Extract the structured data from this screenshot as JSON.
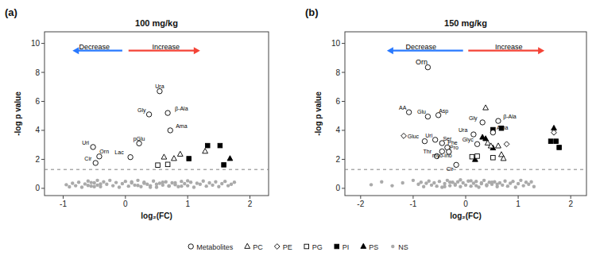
{
  "chart_data": [
    {
      "type": "scatter",
      "title": "100 mg/kg",
      "panel_label": "(a)",
      "x_label": "log₂(FC)",
      "y_label": "-log p value",
      "xlim": [
        -1.3,
        2.3
      ],
      "ylim": [
        -0.5,
        10.8
      ],
      "xticks": [
        -1,
        0,
        1,
        2
      ],
      "yticks": [
        0,
        2,
        4,
        6,
        8,
        10
      ],
      "grid": false,
      "legend": "bottom",
      "series": [
        {
          "name": "Metabolites",
          "marker": "open-circle",
          "color": "black",
          "x": [
            0.55,
            0.38,
            0.68,
            0.72,
            0.22,
            0.08,
            -0.52,
            -0.42,
            -0.48
          ],
          "values": [
            6.7,
            5.1,
            5.2,
            4.0,
            3.1,
            2.15,
            2.85,
            2.2,
            1.75
          ]
        },
        {
          "name": "PC",
          "marker": "open-triangle",
          "color": "black",
          "x": [
            0.62,
            0.78,
            0.88,
            1.28
          ],
          "values": [
            2.15,
            2.05,
            2.35,
            2.55
          ]
        },
        {
          "name": "PE",
          "marker": "open-diamond",
          "color": "black",
          "x": [],
          "values": []
        },
        {
          "name": "PG",
          "marker": "open-square",
          "color": "black",
          "x": [
            0.52,
            0.68
          ],
          "values": [
            1.6,
            1.65
          ]
        },
        {
          "name": "PI",
          "marker": "square",
          "color": "black",
          "x": [
            1.02,
            1.32,
            1.52,
            1.58
          ],
          "values": [
            2.05,
            2.95,
            2.95,
            1.62
          ]
        },
        {
          "name": "PS",
          "marker": "triangle",
          "color": "black",
          "x": [
            1.68
          ],
          "values": [
            2.05
          ]
        },
        {
          "name": "NS",
          "marker": "circle",
          "color": "#aaaaaa",
          "x": [
            -0.95,
            -0.9,
            -0.85,
            -0.8,
            -0.75,
            -0.7,
            -0.65,
            -0.6,
            -0.55,
            -0.5,
            -0.45,
            -0.4,
            -0.35,
            -0.3,
            -0.25,
            -0.2,
            -0.15,
            -0.1,
            -0.05,
            0.0,
            0.05,
            0.1,
            0.15,
            0.2,
            0.25,
            0.3,
            0.35,
            0.4,
            0.45,
            0.5,
            0.55,
            0.6,
            0.65,
            0.7,
            0.75,
            0.8,
            0.85,
            0.9,
            0.95,
            1.0,
            1.05,
            1.1,
            1.15,
            1.2,
            1.25,
            1.3,
            1.35,
            1.4,
            1.45,
            1.5,
            1.55,
            1.6,
            1.65,
            1.7,
            1.75,
            -0.6,
            -0.55,
            -0.5,
            -0.45,
            -0.4,
            0.1,
            0.2,
            0.3,
            0.4,
            0.5,
            0.6,
            0.7,
            0.8,
            0.9,
            1.0
          ],
          "values": [
            0.25,
            0.1,
            0.35,
            0.18,
            0.42,
            0.08,
            0.3,
            0.5,
            0.15,
            0.38,
            0.22,
            0.12,
            0.45,
            0.28,
            0.55,
            0.18,
            0.4,
            0.08,
            0.32,
            0.48,
            0.15,
            0.38,
            0.22,
            0.55,
            0.12,
            0.42,
            0.28,
            0.18,
            0.5,
            0.08,
            0.35,
            0.22,
            0.45,
            0.15,
            0.38,
            0.25,
            0.12,
            0.48,
            0.32,
            0.18,
            0.42,
            0.08,
            0.35,
            0.28,
            0.5,
            0.15,
            0.38,
            0.22,
            0.45,
            0.12,
            0.32,
            0.48,
            0.18,
            0.28,
            0.42,
            0.2,
            0.4,
            0.12,
            0.55,
            0.3,
            0.45,
            0.2,
            0.35,
            0.08,
            0.28,
            0.42,
            0.18,
            0.38,
            0.15,
            0.52
          ]
        }
      ],
      "hlines": [
        {
          "y": 1.3,
          "color": "gray",
          "line_style": "dashed"
        }
      ],
      "arrows": [
        {
          "x_start": -0.05,
          "x_end": -0.85,
          "y": 9.5,
          "color": "#2979FF"
        },
        {
          "x_start": 0.05,
          "x_end": 1.2,
          "y": 9.5,
          "color": "#F44336"
        }
      ],
      "annotations": [
        {
          "text": "Ura",
          "x": 0.55,
          "y": 6.9
        },
        {
          "text": "Gly",
          "x": 0.26,
          "y": 5.28
        },
        {
          "text": "β-Ala",
          "x": 0.9,
          "y": 5.38
        },
        {
          "text": "Ama",
          "x": 0.9,
          "y": 4.18
        },
        {
          "text": "pGlu",
          "x": 0.22,
          "y": 3.28
        },
        {
          "text": "Lac",
          "x": -0.1,
          "y": 2.33
        },
        {
          "text": "Uri",
          "x": -0.64,
          "y": 3.03
        },
        {
          "text": "Orn",
          "x": -0.34,
          "y": 2.38
        },
        {
          "text": "Cir",
          "x": -0.6,
          "y": 1.93
        },
        {
          "text": "Decrease",
          "x": -0.5,
          "y": 9.6
        },
        {
          "text": "Increase",
          "x": 0.65,
          "y": 9.6
        }
      ]
    },
    {
      "type": "scatter",
      "title": "150 mg/kg",
      "panel_label": "(b)",
      "x_label": "log₂(FC)",
      "y_label": "-log p value",
      "xlim": [
        -2.3,
        2.3
      ],
      "ylim": [
        -0.5,
        10.8
      ],
      "xticks": [
        -2,
        -1,
        0,
        1,
        2
      ],
      "yticks": [
        0,
        2,
        4,
        6,
        8,
        10
      ],
      "grid": false,
      "series": [
        {
          "name": "Metabolites",
          "marker": "open-circle",
          "color": "black",
          "x": [
            -0.72,
            -1.08,
            -0.72,
            -0.52,
            -0.78,
            -0.58,
            -0.45,
            -0.35,
            -0.45,
            -0.55,
            -0.32,
            -0.18,
            0.15,
            0.32,
            0.62,
            0.52,
            0.22
          ],
          "values": [
            8.35,
            5.25,
            4.95,
            5.05,
            3.25,
            3.35,
            3.12,
            2.82,
            2.55,
            2.22,
            2.52,
            1.62,
            3.72,
            4.55,
            4.65,
            3.85,
            3.05
          ]
        },
        {
          "name": "PC",
          "marker": "open-triangle",
          "color": "black",
          "x": [
            0.38,
            0.42,
            0.48,
            0.62,
            0.68,
            0.72
          ],
          "values": [
            5.55,
            3.12,
            2.92,
            2.92,
            2.32,
            2.05
          ]
        },
        {
          "name": "PE",
          "marker": "open-diamond",
          "color": "black",
          "x": [
            -1.18,
            0.78,
            1.68
          ],
          "values": [
            3.62,
            3.05,
            3.85
          ]
        },
        {
          "name": "PG",
          "marker": "open-square",
          "color": "black",
          "x": [
            0.12,
            0.22,
            0.52
          ],
          "values": [
            2.18,
            2.22,
            2.12
          ]
        },
        {
          "name": "PI",
          "marker": "square",
          "color": "black",
          "x": [
            0.52,
            0.68,
            1.62,
            1.72,
            1.78
          ],
          "values": [
            4.05,
            4.15,
            3.25,
            3.25,
            2.82
          ]
        },
        {
          "name": "PS",
          "marker": "triangle",
          "color": "black",
          "x": [
            0.18,
            0.32,
            0.38,
            0.52,
            1.68
          ],
          "values": [
            1.98,
            3.52,
            3.42,
            2.78,
            4.15
          ]
        },
        {
          "name": "NS",
          "marker": "circle",
          "color": "#aaaaaa",
          "x": [
            -1.8,
            -1.6,
            -1.4,
            -1.2,
            -1.0,
            -0.9,
            -0.85,
            -0.8,
            -0.75,
            -0.7,
            -0.65,
            -0.6,
            -0.55,
            -0.5,
            -0.45,
            -0.4,
            -0.35,
            -0.3,
            -0.25,
            -0.2,
            -0.15,
            -0.1,
            -0.05,
            0.0,
            0.05,
            0.1,
            0.15,
            0.2,
            0.25,
            0.3,
            0.35,
            0.4,
            0.45,
            0.5,
            0.55,
            0.6,
            0.65,
            0.7,
            0.75,
            0.8,
            0.85,
            0.9,
            0.95,
            1.0,
            1.05,
            1.1,
            1.15,
            1.2,
            1.25,
            1.3,
            -0.1,
            -0.2,
            -0.3,
            0.1,
            0.2,
            0.3,
            0.4,
            -0.4,
            0.5,
            0.6
          ],
          "values": [
            0.25,
            0.45,
            0.18,
            0.38,
            0.55,
            0.28,
            0.42,
            0.12,
            0.35,
            0.5,
            0.22,
            0.38,
            0.15,
            0.48,
            0.08,
            0.32,
            0.55,
            0.18,
            0.42,
            0.28,
            0.45,
            0.12,
            0.38,
            0.22,
            0.5,
            0.15,
            0.35,
            0.48,
            0.08,
            0.32,
            0.55,
            0.18,
            0.42,
            0.28,
            0.45,
            0.12,
            0.38,
            0.22,
            0.5,
            0.15,
            0.35,
            0.48,
            0.08,
            0.32,
            0.55,
            0.18,
            0.42,
            0.28,
            0.45,
            0.12,
            0.58,
            0.22,
            0.42,
            0.52,
            0.18,
            0.38,
            0.25,
            0.12,
            0.42,
            0.28
          ]
        }
      ],
      "hlines": [
        {
          "y": 1.3,
          "color": "gray",
          "line_style": "dashed"
        }
      ],
      "arrows": [
        {
          "x_start": -0.05,
          "x_end": -1.5,
          "y": 9.5,
          "color": "#2979FF"
        },
        {
          "x_start": 0.05,
          "x_end": 1.5,
          "y": 9.5,
          "color": "#F44336"
        }
      ],
      "annotations": [
        {
          "text": "Orn",
          "x": -0.84,
          "y": 8.53
        },
        {
          "text": "AA",
          "x": -1.2,
          "y": 5.43
        },
        {
          "text": "Glu",
          "x": -0.84,
          "y": 5.13
        },
        {
          "text": "Asp",
          "x": -0.42,
          "y": 5.23
        },
        {
          "text": "Gluc",
          "x": -1.0,
          "y": 3.43
        },
        {
          "text": "Uri",
          "x": -0.7,
          "y": 3.53
        },
        {
          "text": "Ser",
          "x": -0.35,
          "y": 3.3
        },
        {
          "text": "Phe",
          "x": -0.25,
          "y": 3.0
        },
        {
          "text": "myo-ino",
          "x": -0.45,
          "y": 2.15
        },
        {
          "text": "Thr",
          "x": -0.73,
          "y": 2.4
        },
        {
          "text": "Pro",
          "x": -0.22,
          "y": 2.7
        },
        {
          "text": "Cir",
          "x": -0.3,
          "y": 1.22
        },
        {
          "text": "Ura",
          "x": -0.05,
          "y": 3.9
        },
        {
          "text": "Gly",
          "x": 0.14,
          "y": 4.73
        },
        {
          "text": "β-Ala",
          "x": 0.84,
          "y": 4.83
        },
        {
          "text": "Ama",
          "x": 0.7,
          "y": 4.03
        },
        {
          "text": "Glyc",
          "x": 0.04,
          "y": 3.23
        },
        {
          "text": "Decrease",
          "x": -0.85,
          "y": 9.6
        },
        {
          "text": "Increase",
          "x": 0.82,
          "y": 9.6
        }
      ]
    }
  ]
}
